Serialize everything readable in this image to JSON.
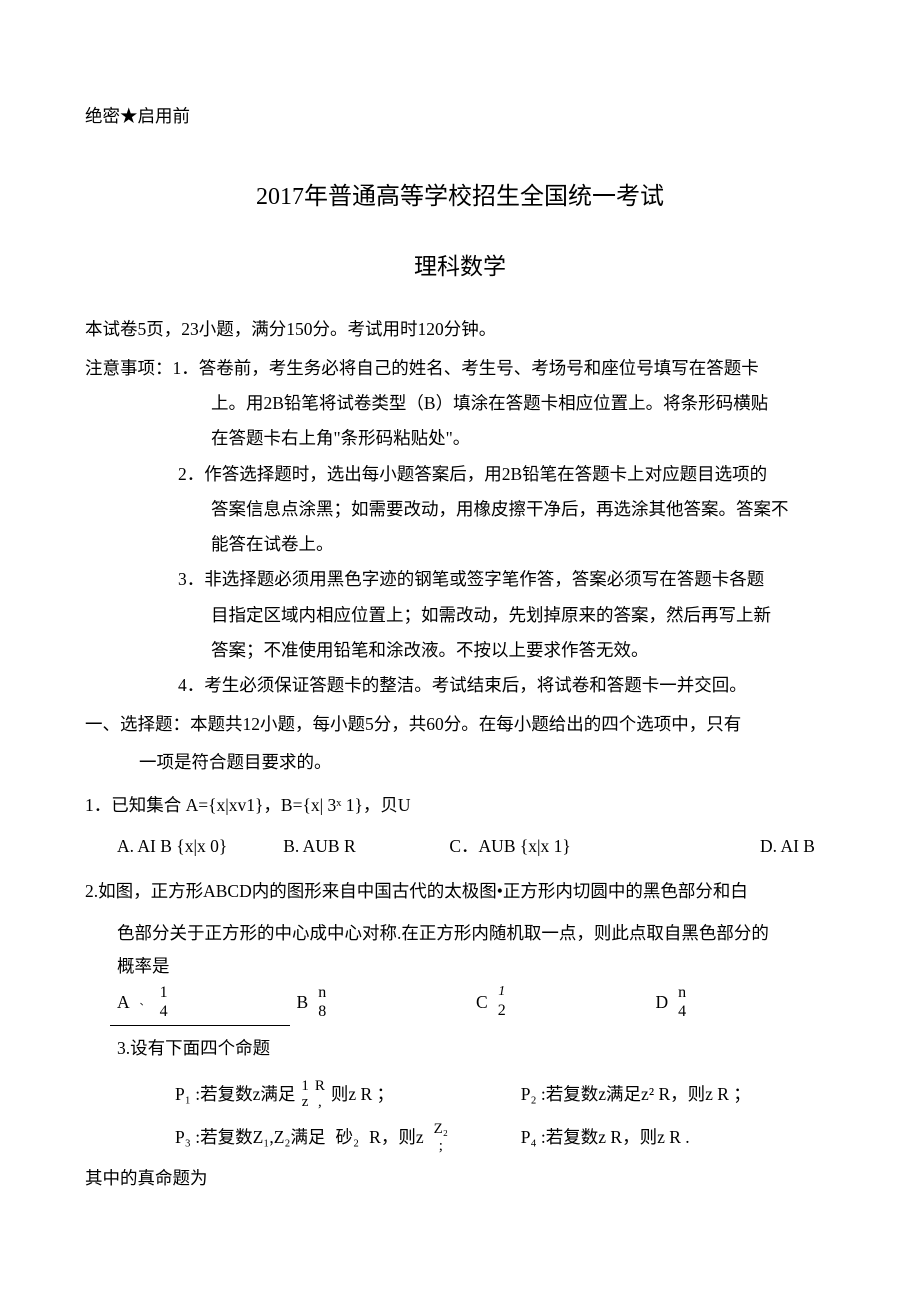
{
  "classification": "绝密★启用前",
  "title_main": "2017年普通高等学校招生全国统一考试",
  "title_sub": "理科数学",
  "info_line": "本试卷5页，23小题，满分150分。考试用时120分钟。",
  "notice": {
    "label": "注意事项：",
    "item1_a": "1．答卷前，考生务必将自己的姓名、考生号、考场号和座位号填写在答题卡",
    "item1_b": "上。用2B铅笔将试卷类型（B）填涂在答题卡相应位置上。将条形码横贴",
    "item1_c": "在答题卡右上角\"条形码粘贴处\"。",
    "item2_a": "2．作答选择题时，选出每小题答案后，用2B铅笔在答题卡上对应题目选项的",
    "item2_b": "答案信息点涂黑；如需要改动，用橡皮擦干净后，再选涂其他答案。答案不",
    "item2_c": "能答在试卷上。",
    "item3_a": "3．非选择题必须用黑色字迹的钢笔或签字笔作答，答案必须写在答题卡各题",
    "item3_b": "目指定区域内相应位置上；如需改动，先划掉原来的答案，然后再写上新",
    "item3_c": "答案；不准使用铅笔和涂改液。不按以上要求作答无效。",
    "item4": "4．考生必须保证答题卡的整洁。考试结束后，将试卷和答题卡一并交回。"
  },
  "section1": {
    "head_a": "一、选择题：本题共12小题，每小题5分，共60分。在每小题给出的四个选项中，只有",
    "head_b": "一项是符合题目要求的。"
  },
  "q1": {
    "stem": "1．已知集合 A={x|xv1}，B={x| 3ˣ 1}，贝U",
    "optA": "A. AI B {x|x 0}",
    "optB": "B. AUB R",
    "optC": "C．AUB {x|x 1}",
    "optD": "D. AI B"
  },
  "q2": {
    "stem_a": "2.如图，正方形ABCD内的图形来自中国古代的太极图•正方形内切圆中的黑色部分和白",
    "stem_b": "色部分关于正方形的中心成中心对称.在正方形内随机取一点，则此点取自黑色部分的",
    "stem_c": "概率是",
    "optA_label": "A",
    "optA_top": "1",
    "optA_bot": "4",
    "optB_label": "B",
    "optB_top": "n",
    "optB_bot": "8",
    "optC_label": "C",
    "optC_top": "1",
    "optC_bot": "2",
    "optD_label": "D",
    "optD_top": "n",
    "optD_bot": "4"
  },
  "q3": {
    "stem": "3.设有下面四个命题",
    "p1_pre": "P₁ :若复数z满足",
    "p1_top": "1",
    "p1_bot": "z",
    "p1_mid_top": "R",
    "p1_mid_bot": ",",
    "p1_post": "则z R ；",
    "p2": "P₂ :若复数z满足z² R，则z R ；",
    "p3_pre": "P₃ :若复数Z₁,Z₂满足",
    "p3_mid": "砂₂",
    "p3_r": "R，则z",
    "p3_top": "Z₂",
    "p3_bot": ";",
    "p4": "P₄ :若复数z R，则z R .",
    "tail": "其中的真命题为"
  }
}
